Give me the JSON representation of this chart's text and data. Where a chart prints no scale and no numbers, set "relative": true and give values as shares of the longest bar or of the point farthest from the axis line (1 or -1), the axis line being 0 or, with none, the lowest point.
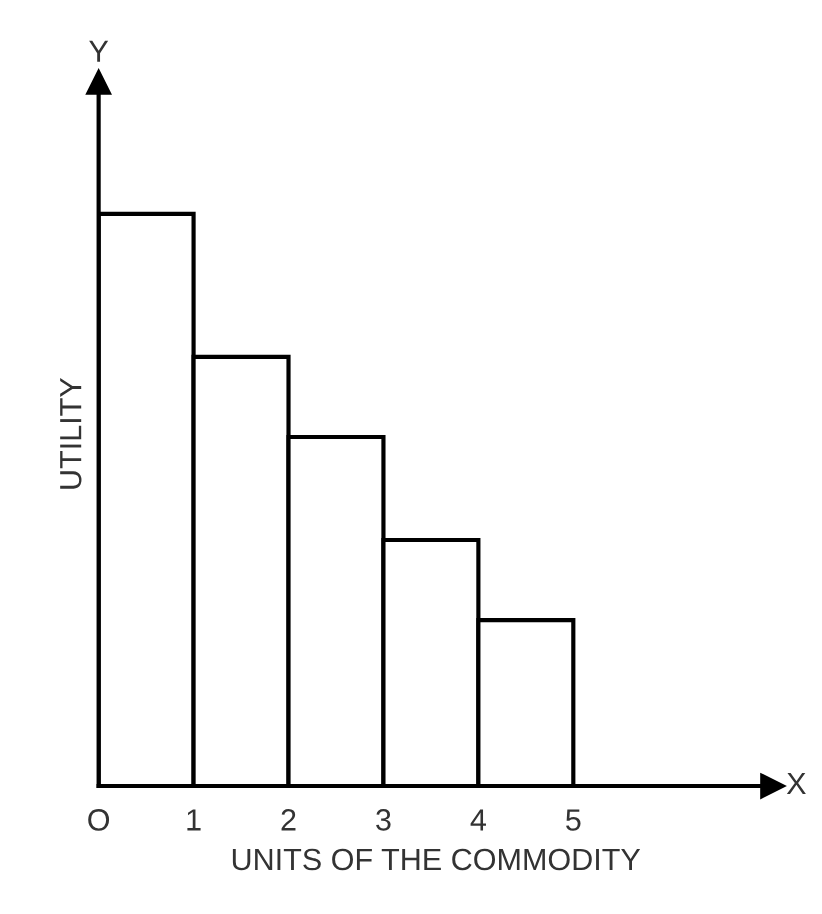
{
  "chart_data": {
    "type": "bar",
    "relative": true,
    "x": [
      0.5,
      1.5,
      2.5,
      3.5,
      4.5
    ],
    "values": [
      1,
      0.75,
      0.61,
      0.43,
      0.29
    ],
    "color": "#ffffff",
    "xlim": [
      0,
      7.1
    ],
    "xticks": [
      {
        "value": 0,
        "label": "O"
      },
      1,
      2,
      3,
      4,
      5
    ],
    "xlabel": "UNITS OF THE COMMODITY",
    "ylabel": "UTILITY",
    "annotations": [
      "Y",
      "X"
    ],
    "grid": false,
    "legend": false
  }
}
